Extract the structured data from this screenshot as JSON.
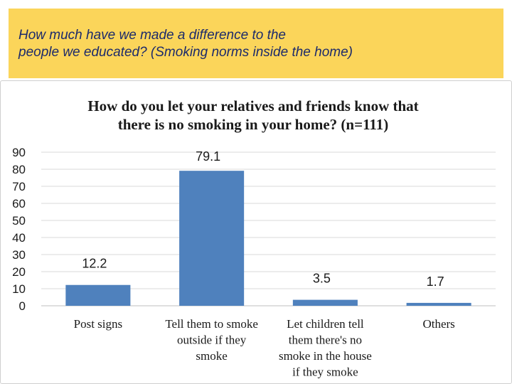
{
  "banner": {
    "title": "How much have we made a difference to the\npeople we educated? (Smoking norms inside the home)",
    "color": "#fbd55a"
  },
  "chart_data": {
    "type": "bar",
    "title": "How do you let your relatives and friends know that\nthere is no smoking in your home?  (n=111)",
    "categories": [
      "Post signs",
      "Tell them to smoke outside if they smoke",
      "Let children tell them there's no smoke in the house if they smoke",
      "Others"
    ],
    "category_lines": [
      [
        "Post signs"
      ],
      [
        "Tell them to smoke",
        "outside if they",
        "smoke"
      ],
      [
        "Let children tell",
        "them there's no",
        "smoke in the house",
        "if they smoke"
      ],
      [
        "Others"
      ]
    ],
    "values": [
      12.2,
      79.1,
      3.5,
      1.7
    ],
    "data_labels": [
      "12.2",
      "79.1",
      "3.5",
      "1.7"
    ],
    "yticks": [
      0,
      10,
      20,
      30,
      40,
      50,
      60,
      70,
      80,
      90
    ],
    "ylim": [
      0,
      90
    ],
    "grid": true,
    "bar_color": "#4f81bd"
  }
}
